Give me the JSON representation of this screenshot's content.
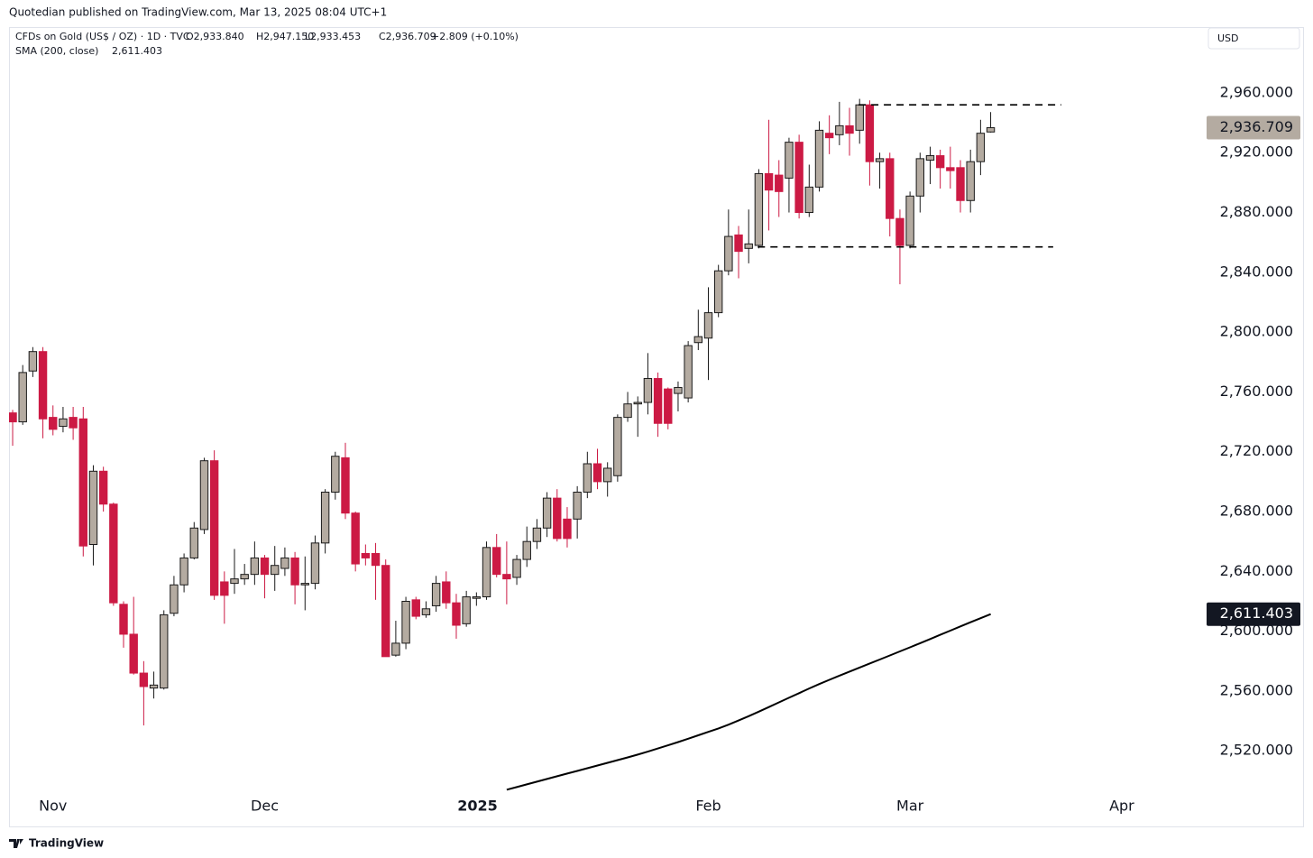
{
  "header": {
    "publisher": "Quotedian published on TradingView.com, Mar 13, 2025 08:04 UTC+1"
  },
  "footer": {
    "brand": "TradingView"
  },
  "chart_data": {
    "type": "candlestick",
    "legend": {
      "symbol": "CFDs on Gold (US$ / OZ) · 1D · TVC",
      "open": "O2,933.840",
      "high": "H2,947.150",
      "low": "L2,933.453",
      "close": "C2,936.709",
      "change": "+2.809 (+0.10%)"
    },
    "currency": "USD",
    "price_label": "2,936.709",
    "up_color": "#b4aba1",
    "down_color": "#cc1a44",
    "border_color": "#1a1a1a",
    "open": [
      2746,
      2740,
      2774,
      2787,
      2743,
      2737,
      2743,
      2742,
      2658,
      2707,
      2685,
      2618,
      2598,
      2572,
      2562,
      2562,
      2612,
      2631,
      2649,
      2668,
      2714,
      2633,
      2632,
      2635,
      2638,
      2649,
      2638,
      2642,
      2649,
      2631,
      2632,
      2659,
      2693,
      2716,
      2679,
      2652,
      2652,
      2644,
      2584,
      2592,
      2621,
      2611,
      2617,
      2633,
      2619,
      2605,
      2622,
      2623,
      2656,
      2638,
      2636,
      2648,
      2660,
      2669,
      2689,
      2675,
      2675,
      2693,
      2712,
      2700,
      2704,
      2743,
      2752,
      2753,
      2769,
      2762,
      2759,
      2756,
      2793,
      2796,
      2813,
      2841,
      2865,
      2856,
      2858,
      2906,
      2905,
      2903,
      2927,
      2880,
      2897,
      2933,
      2932,
      2938,
      2935,
      2952,
      2914,
      2916,
      2876,
      2858,
      2891,
      2915,
      2918,
      2910,
      2910,
      2888,
      2914,
      2933.84
    ],
    "high": [
      2748,
      2778,
      2790,
      2790,
      2751,
      2750,
      2750,
      2750,
      2711,
      2710,
      2686,
      2620,
      2623,
      2580,
      2573,
      2614,
      2637,
      2652,
      2673,
      2716,
      2721,
      2640,
      2655,
      2645,
      2660,
      2651,
      2657,
      2656,
      2653,
      2650,
      2664,
      2695,
      2720,
      2726,
      2680,
      2658,
      2659,
      2648,
      2607,
      2623,
      2623,
      2620,
      2637,
      2640,
      2625,
      2627,
      2626,
      2660,
      2665,
      2660,
      2651,
      2670,
      2675,
      2693,
      2695,
      2683,
      2697,
      2720,
      2722,
      2713,
      2745,
      2760,
      2757,
      2786,
      2773,
      2763,
      2767,
      2794,
      2815,
      2830,
      2845,
      2882,
      2871,
      2882,
      2909,
      2942,
      2915,
      2930,
      2932,
      2912,
      2941,
      2945,
      2954,
      2950,
      2956,
      2955,
      2920,
      2920,
      2882,
      2894,
      2920,
      2924,
      2922,
      2924,
      2915,
      2922,
      2942,
      2947.15
    ],
    "low": [
      2724,
      2738,
      2770,
      2729,
      2731,
      2733,
      2728,
      2650,
      2644,
      2680,
      2617,
      2589,
      2571,
      2537,
      2555,
      2561,
      2610,
      2626,
      2648,
      2665,
      2621,
      2605,
      2625,
      2631,
      2631,
      2622,
      2627,
      2637,
      2618,
      2614,
      2628,
      2652,
      2688,
      2675,
      2640,
      2644,
      2621,
      2583,
      2583,
      2588,
      2608,
      2609,
      2613,
      2615,
      2595,
      2603,
      2617,
      2621,
      2636,
      2618,
      2631,
      2643,
      2655,
      2663,
      2660,
      2656,
      2662,
      2689,
      2695,
      2690,
      2700,
      2740,
      2730,
      2745,
      2730,
      2735,
      2747,
      2753,
      2788,
      2768,
      2810,
      2838,
      2836,
      2846,
      2856,
      2868,
      2877,
      2880,
      2876,
      2877,
      2894,
      2919,
      2925,
      2918,
      2926,
      2898,
      2896,
      2864,
      2832,
      2856,
      2880,
      2899,
      2896,
      2896,
      2880,
      2880,
      2905,
      2933.453
    ],
    "close": [
      2740,
      2773,
      2787,
      2742,
      2735,
      2742,
      2736,
      2657,
      2707,
      2685,
      2619,
      2598,
      2572,
      2563,
      2564,
      2611,
      2631,
      2649,
      2669,
      2714,
      2624,
      2624,
      2635,
      2638,
      2649,
      2638,
      2644,
      2649,
      2631,
      2632,
      2659,
      2693,
      2717,
      2679,
      2645,
      2649,
      2644,
      2583,
      2592,
      2620,
      2610,
      2615,
      2632,
      2619,
      2604,
      2623,
      2623,
      2656,
      2638,
      2635,
      2648,
      2660,
      2669,
      2689,
      2662,
      2662,
      2693,
      2712,
      2700,
      2709,
      2743,
      2752,
      2753,
      2769,
      2739,
      2739,
      2763,
      2791,
      2797,
      2813,
      2841,
      2864,
      2854,
      2859,
      2906,
      2895,
      2894,
      2927,
      2880,
      2897,
      2935,
      2930,
      2938,
      2933,
      2952,
      2914,
      2916,
      2876,
      2858,
      2891,
      2916,
      2918,
      2910,
      2908,
      2888,
      2914,
      2933,
      2936.709
    ],
    "sma": {
      "name": "SMA (200, close)",
      "value_label": "2,611.403",
      "color": "#000000",
      "values": [
        null,
        null,
        null,
        null,
        null,
        null,
        null,
        null,
        null,
        null,
        null,
        null,
        null,
        null,
        null,
        null,
        null,
        null,
        null,
        null,
        null,
        null,
        null,
        null,
        null,
        null,
        null,
        null,
        null,
        null,
        null,
        null,
        null,
        null,
        null,
        null,
        null,
        null,
        null,
        null,
        null,
        null,
        null,
        null,
        null,
        null,
        null,
        null,
        null,
        2494.0,
        2495.8,
        2497.6,
        2499.4,
        2501.2,
        2503.0,
        2504.8,
        2506.6,
        2508.4,
        2510.2,
        2512.0,
        2513.8,
        2515.6,
        2517.5,
        2519.5,
        2521.6,
        2523.7,
        2525.9,
        2528.1,
        2530.4,
        2532.7,
        2535.0,
        2537.5,
        2540.3,
        2543.2,
        2546.2,
        2549.3,
        2552.4,
        2555.5,
        2558.6,
        2561.7,
        2564.7,
        2567.5,
        2570.3,
        2573.0,
        2575.7,
        2578.4,
        2581.1,
        2583.8,
        2586.5,
        2589.2,
        2592.0,
        2594.8,
        2597.6,
        2600.4,
        2603.2,
        2606.0,
        2608.7,
        2611.403
      ]
    },
    "levels": [
      {
        "value": 2952,
        "start": 83.9,
        "end": 104
      },
      {
        "value": 2857,
        "start": 73.9,
        "end": 103.2
      }
    ],
    "xlim": [
      -0.36,
      117.7
    ],
    "xticks": [
      {
        "value": 4,
        "label": "Nov"
      },
      {
        "value": 25,
        "label": "Dec"
      },
      {
        "value": 46.1,
        "label": "2025"
      },
      {
        "value": 69,
        "label": "Feb"
      },
      {
        "value": 89,
        "label": "Mar"
      },
      {
        "value": 110,
        "label": "Apr"
      }
    ],
    "ylim": [
      2493,
      3004
    ],
    "yticks": [
      {
        "value": 2520,
        "label": "2,520.000"
      },
      {
        "value": 2560,
        "label": "2,560.000"
      },
      {
        "value": 2600,
        "label": "2,600.000"
      },
      {
        "value": 2640,
        "label": "2,640.000"
      },
      {
        "value": 2680,
        "label": "2,680.000"
      },
      {
        "value": 2720,
        "label": "2,720.000"
      },
      {
        "value": 2760,
        "label": "2,760.000"
      },
      {
        "value": 2800,
        "label": "2,800.000"
      },
      {
        "value": 2840,
        "label": "2,840.000"
      },
      {
        "value": 2880,
        "label": "2,880.000"
      },
      {
        "value": 2920,
        "label": "2,920.000"
      },
      {
        "value": 2960,
        "label": "2,960.000"
      }
    ],
    "grid": false
  }
}
